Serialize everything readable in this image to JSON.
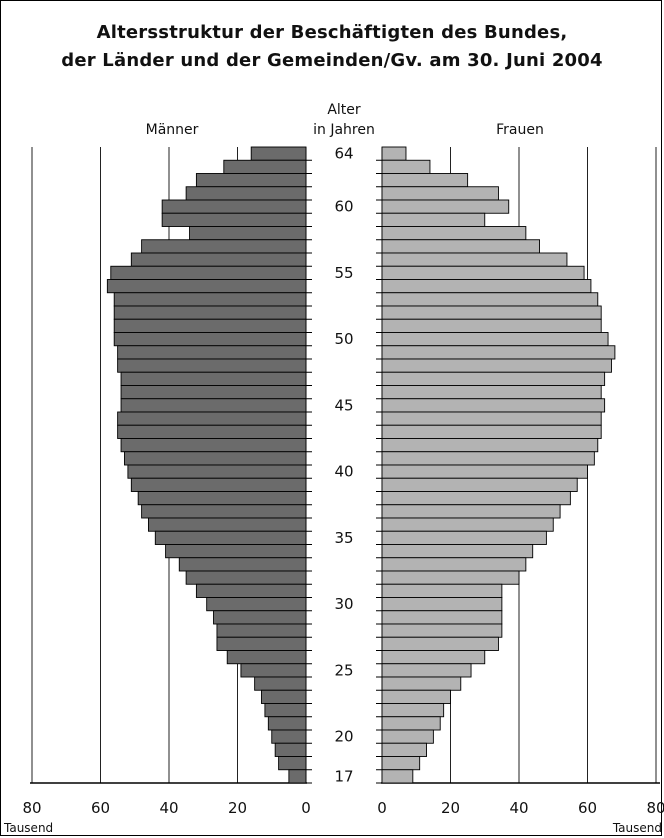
{
  "chart_data": {
    "type": "bar",
    "orientation": "population-pyramid",
    "title": "Altersstruktur der Beschäftigten des Bundes,",
    "subtitle": "der Länder und der Gemeinden/Gv. am 30. Juni 2004",
    "age_axis_label_line1": "Alter",
    "age_axis_label_line2": "in Jahren",
    "x_unit": "Tausend",
    "xlim": [
      0,
      80
    ],
    "x_ticks": [
      "80",
      "60",
      "40",
      "20",
      "0"
    ],
    "x_ticks_right": [
      "0",
      "20",
      "40",
      "60",
      "80"
    ],
    "age_tick_labels": [
      "64",
      "60",
      "55",
      "50",
      "45",
      "40",
      "35",
      "30",
      "25",
      "20",
      "17"
    ],
    "ages": [
      64,
      63,
      62,
      61,
      60,
      59,
      58,
      57,
      56,
      55,
      54,
      53,
      52,
      51,
      50,
      49,
      48,
      47,
      46,
      45,
      44,
      43,
      42,
      41,
      40,
      39,
      38,
      37,
      36,
      35,
      34,
      33,
      32,
      31,
      30,
      29,
      28,
      27,
      26,
      25,
      24,
      23,
      22,
      21,
      20,
      19,
      18,
      17
    ],
    "series": [
      {
        "name": "Männer",
        "color": "#6b6b6b",
        "values": [
          16,
          24,
          32,
          35,
          42,
          42,
          34,
          48,
          51,
          57,
          58,
          56,
          56,
          56,
          56,
          55,
          55,
          54,
          54,
          54,
          55,
          55,
          54,
          53,
          52,
          51,
          49,
          48,
          46,
          44,
          41,
          37,
          35,
          32,
          29,
          27,
          26,
          26,
          23,
          19,
          15,
          13,
          12,
          11,
          10,
          9,
          8,
          5
        ]
      },
      {
        "name": "Frauen",
        "color": "#b3b3b3",
        "values": [
          7,
          14,
          25,
          34,
          37,
          30,
          42,
          46,
          54,
          59,
          61,
          63,
          64,
          64,
          66,
          68,
          67,
          65,
          64,
          65,
          64,
          64,
          63,
          62,
          60,
          57,
          55,
          52,
          50,
          48,
          44,
          42,
          40,
          35,
          35,
          35,
          35,
          34,
          30,
          26,
          23,
          20,
          18,
          17,
          15,
          13,
          11,
          9
        ]
      }
    ]
  }
}
